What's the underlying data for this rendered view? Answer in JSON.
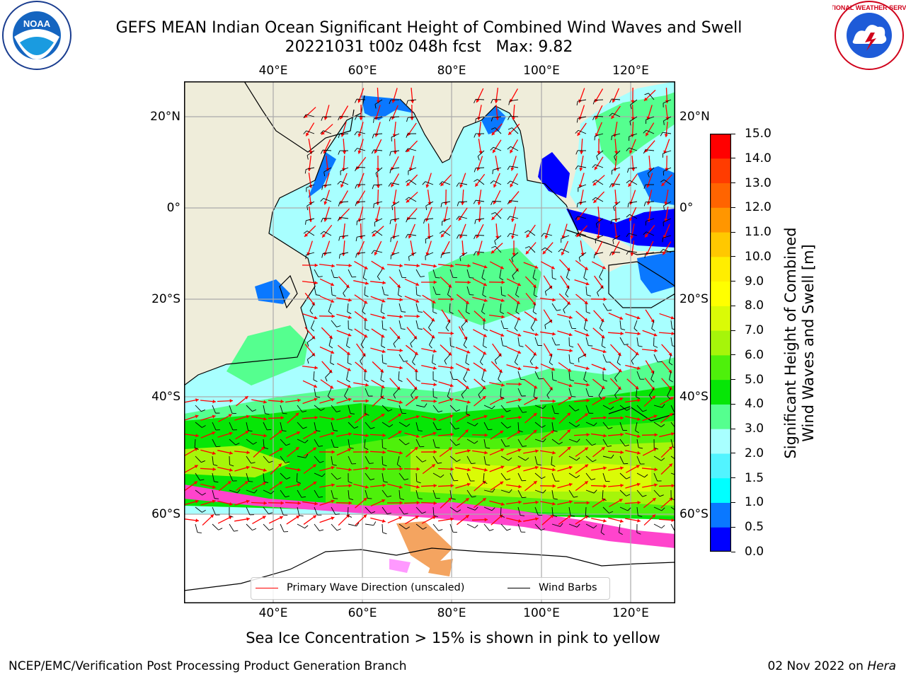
{
  "header": {
    "title_line1": "GEFS MEAN Indian Ocean Significant Height of Combined Wind Waves and Swell",
    "title_line2": "20221031 t00z 048h fcst   Max: 9.82"
  },
  "logos": {
    "noaa": {
      "icon": "noaa-seal-icon",
      "text": "NOAA"
    },
    "nws": {
      "icon": "nws-seal-icon",
      "text": "NATIONAL WEATHER SERVICE"
    }
  },
  "map": {
    "lon_labels": [
      "40°E",
      "60°E",
      "80°E",
      "100°E",
      "120°E"
    ],
    "lat_labels": [
      "20°N",
      "0°",
      "20°S",
      "40°S",
      "60°S"
    ],
    "colors": {
      "land": "#efedda",
      "ice_bg": "#ffffff",
      "grid": "#aaaaaa",
      "arrow": "#ff0000",
      "barb": "#000000"
    }
  },
  "colorbar": {
    "label_line1": "Significant Height of Combined",
    "label_line2": "Wind Waves and Swell [m]",
    "ticks": [
      "0.0",
      "0.5",
      "1.0",
      "1.5",
      "2.0",
      "3.0",
      "4.0",
      "5.0",
      "6.0",
      "7.0",
      "8.0",
      "9.0",
      "10.0",
      "11.0",
      "12.0",
      "13.0",
      "14.0",
      "15.0"
    ],
    "colors": [
      "#0000ff",
      "#0a78ff",
      "#00ffff",
      "#52f4ff",
      "#a8ffff",
      "#55ff8f",
      "#06e606",
      "#4ef00b",
      "#a6f50a",
      "#dafb06",
      "#ffff00",
      "#ffee00",
      "#ffc800",
      "#ff9600",
      "#ff6400",
      "#ff3c00",
      "#ff0000"
    ]
  },
  "legend": {
    "wave_label": "Primary Wave Direction (unscaled)",
    "barb_label": "Wind Barbs",
    "wave_color": "#ff0000",
    "barb_color": "#000000"
  },
  "footnote": "Sea Ice Concentration > 15% is shown in pink to yellow",
  "credits": {
    "left": "NCEP/EMC/Verification Post Processing Product Generation Branch",
    "date": "02 Nov 2022 on",
    "host": "Hera"
  }
}
